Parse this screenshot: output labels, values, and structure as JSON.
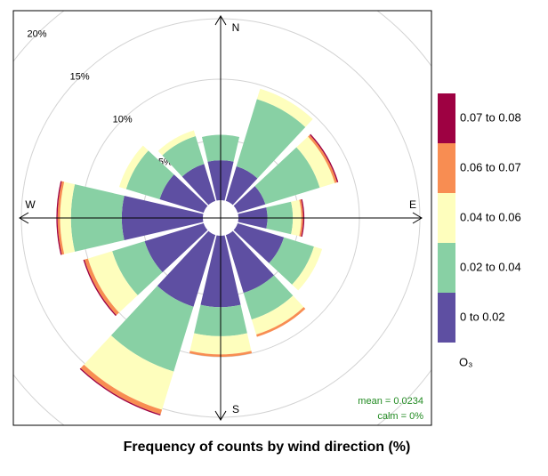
{
  "chart_data": {
    "type": "windrose",
    "title": "Frequency of counts by wind direction (%)",
    "x": [
      0,
      30,
      60,
      90,
      120,
      150,
      180,
      210,
      240,
      270,
      300,
      330
    ],
    "compass": [
      "N",
      "E",
      "S",
      "W"
    ],
    "series": [
      {
        "name": "0 to 0.02",
        "color": "#5e4fa2",
        "values": [
          3.3,
          3.0,
          2.4,
          2.4,
          4.0,
          5.0,
          5.9,
          6.2,
          5.1,
          6.7,
          3.8,
          3.2
        ]
      },
      {
        "name": "0.02 to 0.04",
        "color": "#88d0a4",
        "values": [
          2.1,
          5.8,
          4.7,
          2.1,
          2.6,
          2.3,
          2.4,
          5.6,
          2.8,
          4.2,
          2.9,
          2.4
        ]
      },
      {
        "name": "0.04 to 0.06",
        "color": "#fefebd",
        "values": [
          0,
          0.9,
          1.3,
          0.7,
          0.7,
          1.3,
          1.5,
          3.3,
          2.1,
          0.9,
          0.6,
          0.5
        ]
      },
      {
        "name": "0.06 to 0.07",
        "color": "#f88d52",
        "values": [
          0,
          0,
          0.2,
          0.15,
          0,
          0.2,
          0.2,
          0.4,
          0.3,
          0.2,
          0,
          0
        ]
      },
      {
        "name": "0.07 to 0.08",
        "color": "#9e0142",
        "values": [
          0,
          0,
          0.1,
          0.1,
          0,
          0,
          0,
          0.1,
          0.1,
          0.1,
          0,
          0
        ]
      }
    ],
    "ylim": [
      0,
      20
    ],
    "yticks": [
      {
        "value": 5,
        "label": "5%"
      },
      {
        "value": 10,
        "label": "10%"
      },
      {
        "value": 15,
        "label": "15%"
      },
      {
        "value": 20,
        "label": "20%"
      }
    ],
    "legend_title": "O₃",
    "annotations": [
      "mean = 0.0234",
      "calm = 0%"
    ]
  }
}
